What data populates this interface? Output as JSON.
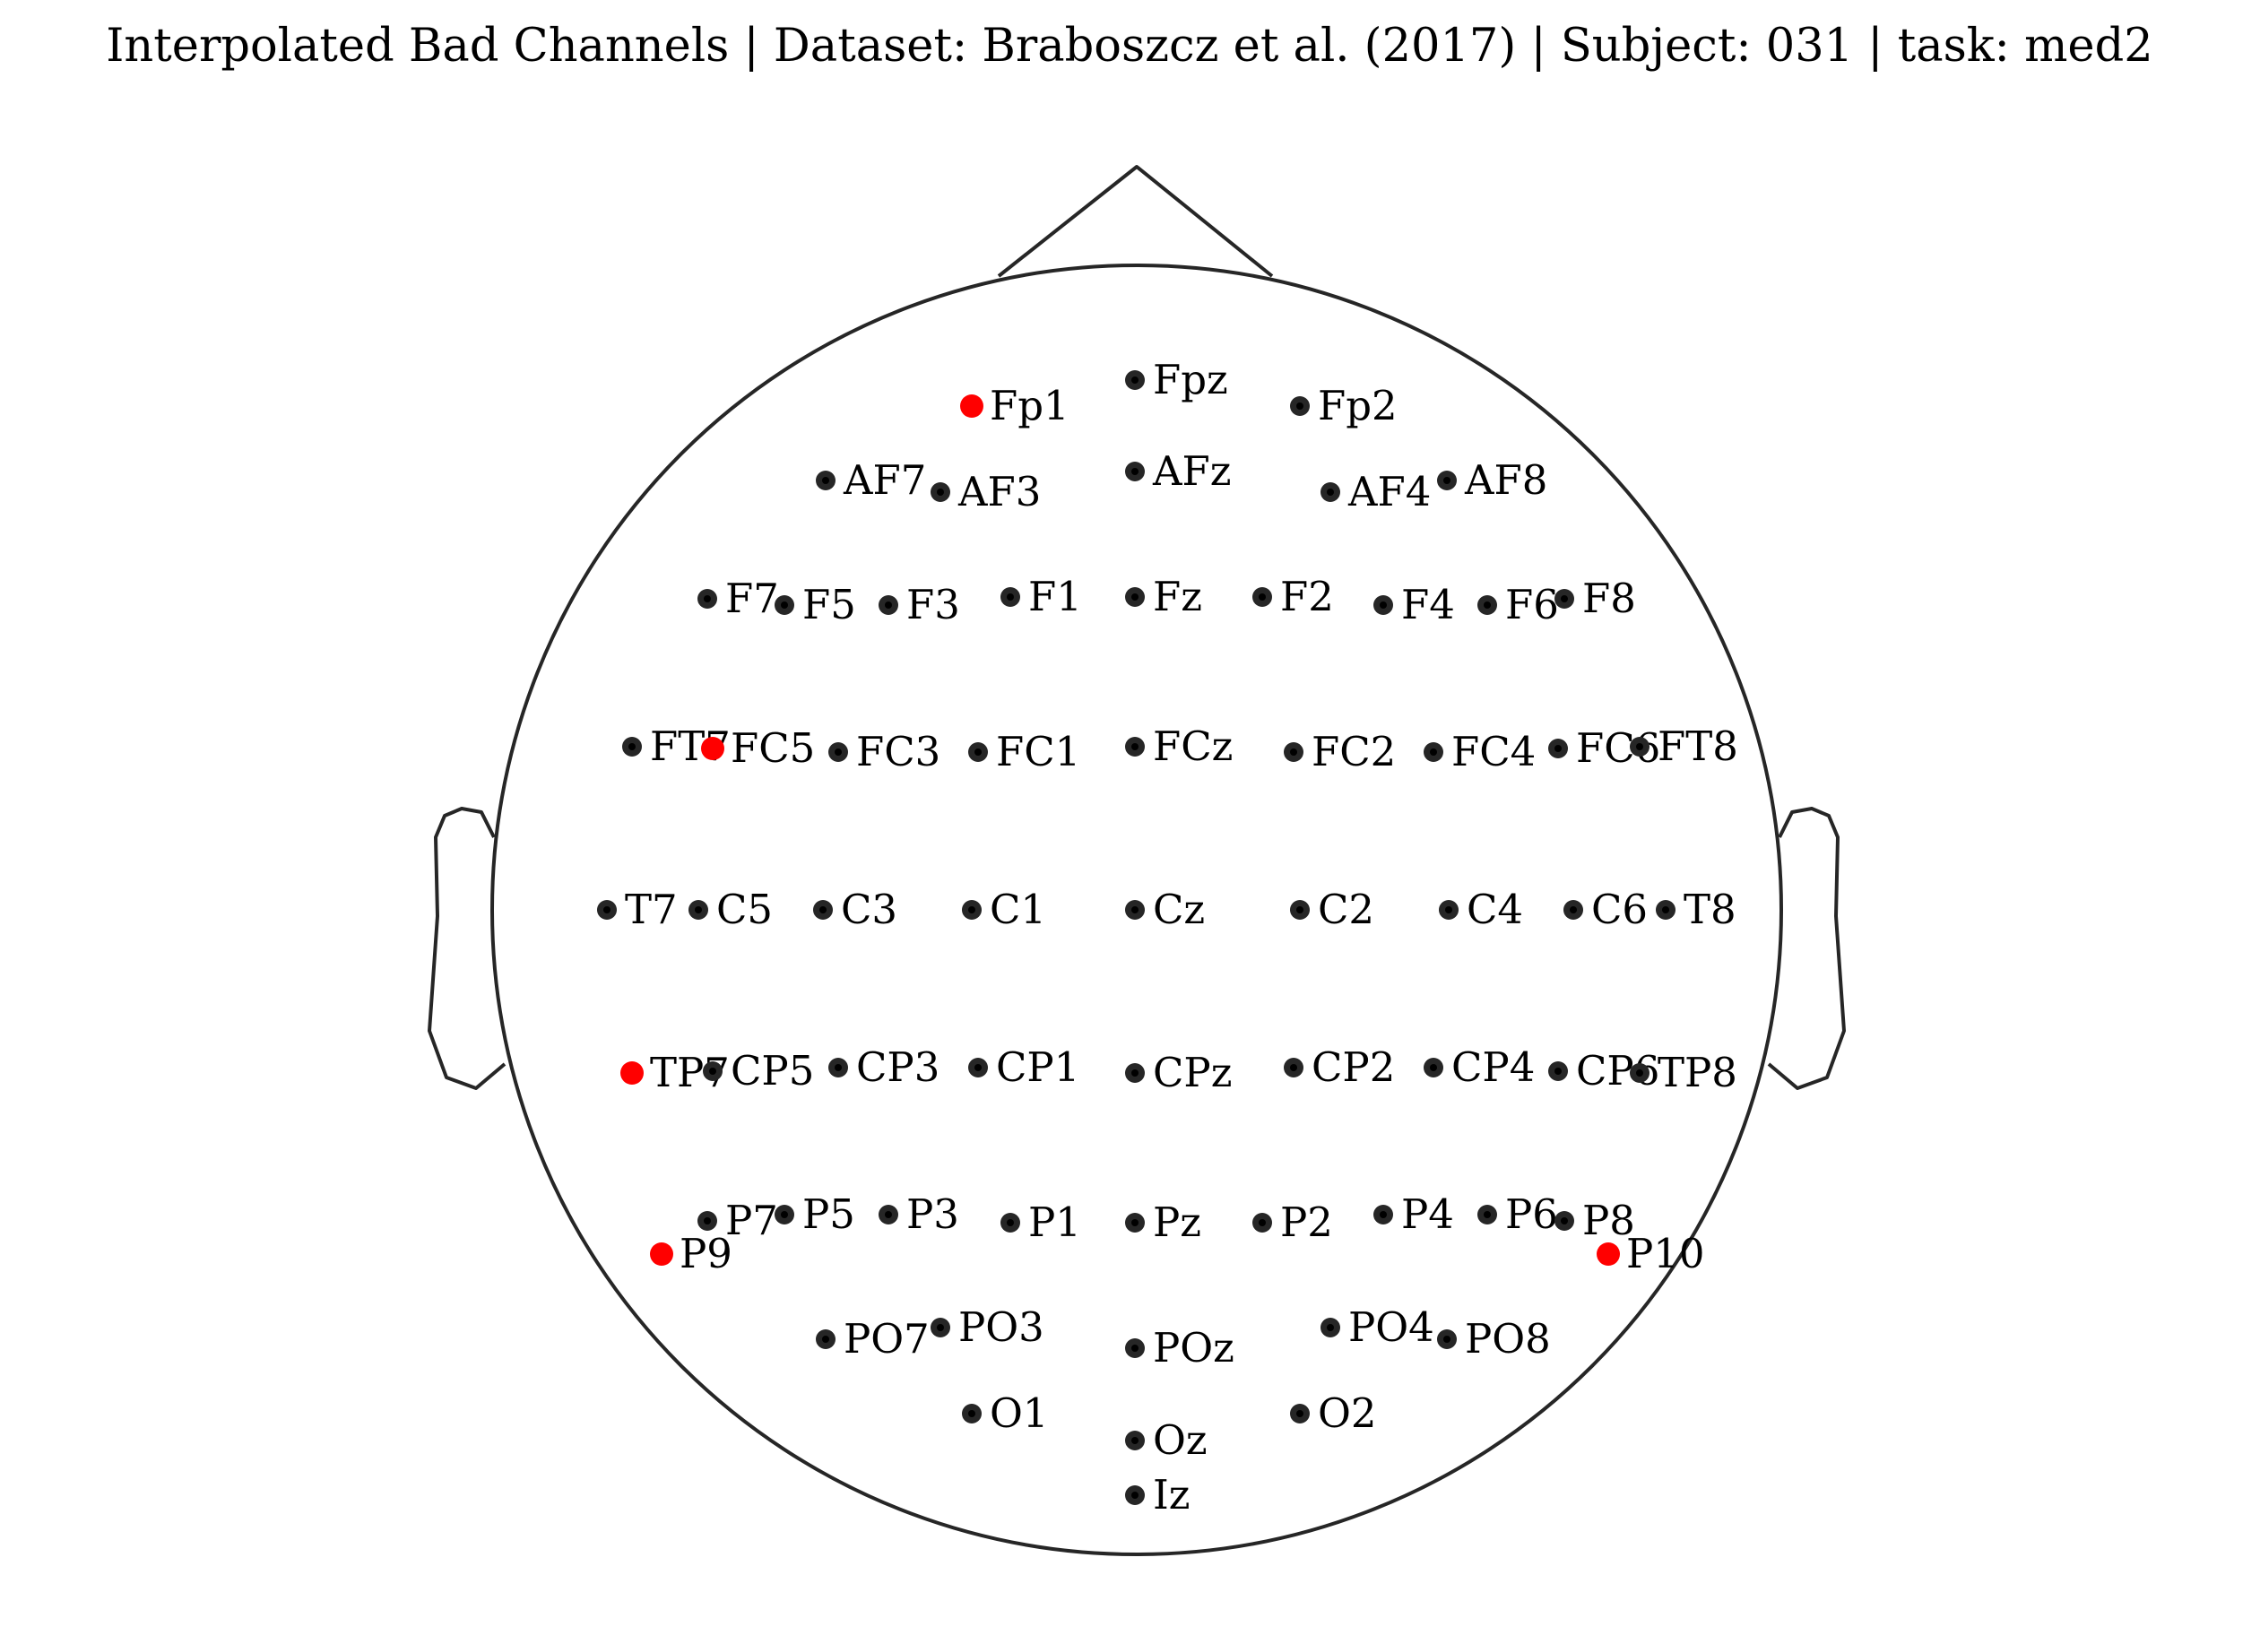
{
  "title": "Interpolated Bad Channels | Dataset: Braboszcz et al. (2017) | Subject: 031 | task: med2",
  "colors": {
    "good_channel": "#262626",
    "good_channel_center": "#000000",
    "bad_channel": "#ff0000",
    "head_outline": "#262626"
  },
  "channels": [
    {
      "name": "Fp1",
      "bad": true
    },
    {
      "name": "Fpz",
      "bad": false
    },
    {
      "name": "Fp2",
      "bad": false
    },
    {
      "name": "AF7",
      "bad": false
    },
    {
      "name": "AF3",
      "bad": false
    },
    {
      "name": "AFz",
      "bad": false
    },
    {
      "name": "AF4",
      "bad": false
    },
    {
      "name": "AF8",
      "bad": false
    },
    {
      "name": "F7",
      "bad": false
    },
    {
      "name": "F5",
      "bad": false
    },
    {
      "name": "F3",
      "bad": false
    },
    {
      "name": "F1",
      "bad": false
    },
    {
      "name": "Fz",
      "bad": false
    },
    {
      "name": "F2",
      "bad": false
    },
    {
      "name": "F4",
      "bad": false
    },
    {
      "name": "F6",
      "bad": false
    },
    {
      "name": "F8",
      "bad": false
    },
    {
      "name": "FT7",
      "bad": false
    },
    {
      "name": "FC5",
      "bad": true
    },
    {
      "name": "FC3",
      "bad": false
    },
    {
      "name": "FC1",
      "bad": false
    },
    {
      "name": "FCz",
      "bad": false
    },
    {
      "name": "FC2",
      "bad": false
    },
    {
      "name": "FC4",
      "bad": false
    },
    {
      "name": "FC6",
      "bad": false
    },
    {
      "name": "FT8",
      "bad": false
    },
    {
      "name": "T7",
      "bad": false
    },
    {
      "name": "C5",
      "bad": false
    },
    {
      "name": "C3",
      "bad": false
    },
    {
      "name": "C1",
      "bad": false
    },
    {
      "name": "Cz",
      "bad": false
    },
    {
      "name": "C2",
      "bad": false
    },
    {
      "name": "C4",
      "bad": false
    },
    {
      "name": "C6",
      "bad": false
    },
    {
      "name": "T8",
      "bad": false
    },
    {
      "name": "TP7",
      "bad": true
    },
    {
      "name": "CP5",
      "bad": false
    },
    {
      "name": "CP3",
      "bad": false
    },
    {
      "name": "CP1",
      "bad": false
    },
    {
      "name": "CPz",
      "bad": false
    },
    {
      "name": "CP2",
      "bad": false
    },
    {
      "name": "CP4",
      "bad": false
    },
    {
      "name": "CP6",
      "bad": false
    },
    {
      "name": "TP8",
      "bad": false
    },
    {
      "name": "P7",
      "bad": false
    },
    {
      "name": "P5",
      "bad": false
    },
    {
      "name": "P3",
      "bad": false
    },
    {
      "name": "P1",
      "bad": false
    },
    {
      "name": "Pz",
      "bad": false
    },
    {
      "name": "P2",
      "bad": false
    },
    {
      "name": "P4",
      "bad": false
    },
    {
      "name": "P6",
      "bad": false
    },
    {
      "name": "P8",
      "bad": false
    },
    {
      "name": "P9",
      "bad": true
    },
    {
      "name": "P10",
      "bad": true
    },
    {
      "name": "PO7",
      "bad": false
    },
    {
      "name": "PO3",
      "bad": false
    },
    {
      "name": "POz",
      "bad": false
    },
    {
      "name": "PO4",
      "bad": false
    },
    {
      "name": "PO8",
      "bad": false
    },
    {
      "name": "O1",
      "bad": false
    },
    {
      "name": "Oz",
      "bad": false
    },
    {
      "name": "O2",
      "bad": false
    },
    {
      "name": "Iz",
      "bad": false
    }
  ]
}
